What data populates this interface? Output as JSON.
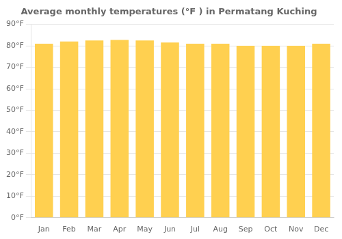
{
  "chart_data": {
    "type": "bar",
    "title": "Average monthly temperatures (°F ) in Permatang Kuching",
    "categories": [
      "Jan",
      "Feb",
      "Mar",
      "Apr",
      "May",
      "Jun",
      "Jul",
      "Aug",
      "Sep",
      "Oct",
      "Nov",
      "Dec"
    ],
    "values": [
      81.0,
      82.0,
      82.5,
      82.7,
      82.5,
      81.5,
      81.0,
      81.0,
      80.0,
      80.0,
      80.0,
      81.0
    ],
    "color": "#FFD050",
    "ylim": [
      0,
      90
    ],
    "yticks": [
      {
        "value": 0,
        "label": "0°F"
      },
      {
        "value": 10,
        "label": "10°F"
      },
      {
        "value": 20,
        "label": "20°F"
      },
      {
        "value": 30,
        "label": "30°F"
      },
      {
        "value": 40,
        "label": "40°F"
      },
      {
        "value": 50,
        "label": "50°F"
      },
      {
        "value": 60,
        "label": "60°F"
      },
      {
        "value": 70,
        "label": "70°F"
      },
      {
        "value": 80,
        "label": "80°F"
      },
      {
        "value": 90,
        "label": "90°F"
      }
    ],
    "grid": true
  }
}
